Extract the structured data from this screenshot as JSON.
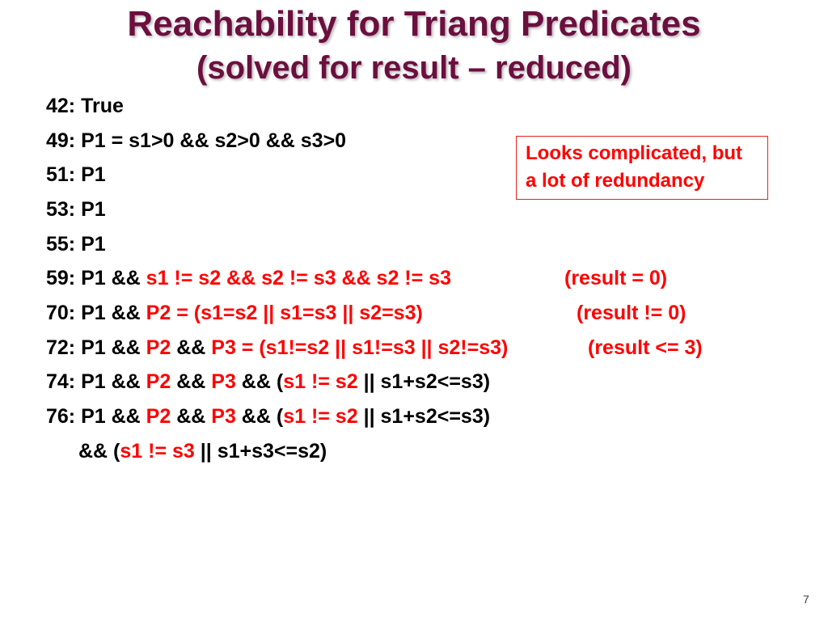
{
  "slide": {
    "title": "Reachability for Triang Predicates",
    "subtitle": "(solved for result – reduced)",
    "page_number": "7"
  },
  "lines": [
    {
      "segments": [
        "42: True"
      ]
    },
    {
      "segments": [
        "49: P1 = s1>0 && s2>0 && s3>0"
      ]
    },
    {
      "segments": [
        "51: P1"
      ]
    },
    {
      "segments": [
        "53: P1"
      ]
    },
    {
      "segments": [
        "55: P1"
      ]
    },
    {
      "segments": [
        "59: P1 && ",
        "s1 != s2 && s2 != s3 && s2 != s3"
      ],
      "note": "(result = 0)"
    },
    {
      "segments": [
        "70: P1 && ",
        "P2 = (s1=s2 || s1=s3 || s2=s3)"
      ],
      "note": "(result != 0)"
    },
    {
      "segments": [
        "72: P1 && ",
        "P2",
        " && ",
        "P3 = (s1!=s2 || s1!=s3 || s2!=s3)"
      ],
      "note": "(result <= 3)"
    },
    {
      "segments": [
        "74: P1 && ",
        "P2",
        " && ",
        "P3",
        " && (",
        "s1 != s2",
        " || s1+s2<=s3)"
      ]
    },
    {
      "segments": [
        "76: P1 && ",
        "P2",
        " && ",
        "P3",
        " && (",
        "s1 != s2",
        " || s1+s2<=s3)"
      ]
    },
    {
      "segments": [
        "&& (",
        "s1 != s3",
        " || s1+s3<=s2)"
      ]
    }
  ],
  "callout": {
    "lines": [
      "Looks complicated, but",
      "a lot of redundancy"
    ]
  },
  "colors": {
    "title": "#6b0f3f",
    "text": "#000000",
    "highlight": "#ff0000",
    "callout_border": "#e8201f"
  }
}
